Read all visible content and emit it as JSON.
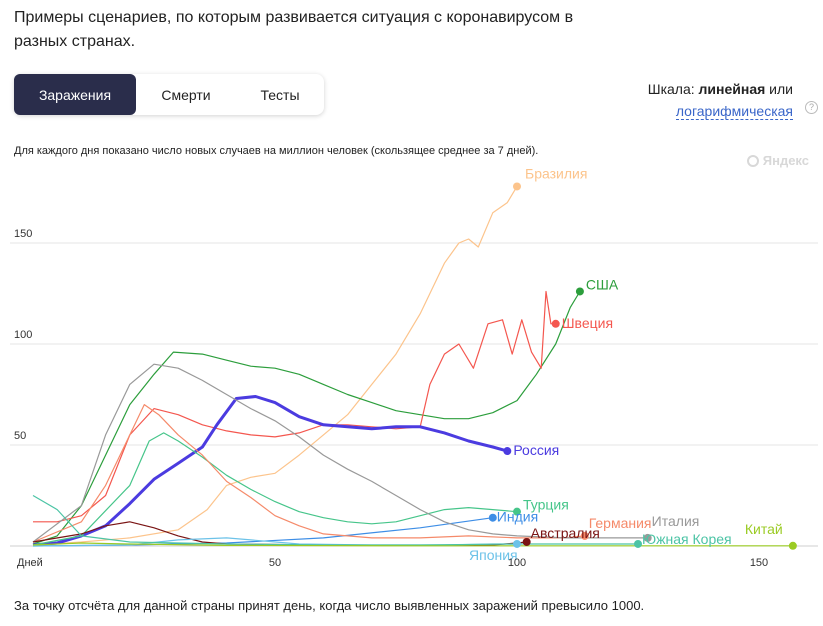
{
  "title": "Примеры сценариев, по которым развивается ситуация с коронавирусом в разных странах.",
  "tabs": [
    {
      "label": "Заражения",
      "active": true
    },
    {
      "label": "Смерти",
      "active": false
    },
    {
      "label": "Тесты",
      "active": false
    }
  ],
  "scale": {
    "prefix": "Шкала: ",
    "current": "линейная",
    "or": " или",
    "alt": "логарифмическая",
    "help": "?"
  },
  "subtitle": "Для каждого дня показано число новых случаев на миллион человек (скользящее среднее за 7 дней).",
  "logo": "Яндекс",
  "footnote": "За точку отсчёта для данной страны принят день, когда число выявленных заражений превысило 1000.",
  "chart_data": {
    "type": "line",
    "xlabel": "Дней",
    "ylabel": "",
    "xlim": [
      0,
      163
    ],
    "ylim": [
      0,
      185
    ],
    "xticks": [
      50,
      100,
      150
    ],
    "yticks": [
      50,
      100,
      150
    ],
    "grid": "horizontal",
    "series": [
      {
        "name": "Бразилия",
        "color": "#fcc48c",
        "points": [
          [
            0,
            0.5
          ],
          [
            10,
            2
          ],
          [
            20,
            4
          ],
          [
            30,
            8
          ],
          [
            36,
            18
          ],
          [
            40,
            30
          ],
          [
            45,
            34
          ],
          [
            50,
            36
          ],
          [
            55,
            45
          ],
          [
            60,
            55
          ],
          [
            65,
            65
          ],
          [
            70,
            80
          ],
          [
            75,
            95
          ],
          [
            80,
            115
          ],
          [
            85,
            140
          ],
          [
            88,
            150
          ],
          [
            90,
            152
          ],
          [
            92,
            148
          ],
          [
            95,
            165
          ],
          [
            98,
            170
          ],
          [
            100,
            178
          ]
        ]
      },
      {
        "name": "США",
        "color": "#2c9e3c",
        "points": [
          [
            0,
            1
          ],
          [
            5,
            5
          ],
          [
            10,
            20
          ],
          [
            15,
            45
          ],
          [
            20,
            70
          ],
          [
            25,
            85
          ],
          [
            29,
            96
          ],
          [
            35,
            95
          ],
          [
            40,
            92
          ],
          [
            45,
            89
          ],
          [
            50,
            88
          ],
          [
            55,
            85
          ],
          [
            60,
            80
          ],
          [
            65,
            75
          ],
          [
            70,
            71
          ],
          [
            75,
            67
          ],
          [
            80,
            65
          ],
          [
            85,
            63
          ],
          [
            90,
            63
          ],
          [
            95,
            66
          ],
          [
            100,
            72
          ],
          [
            104,
            85
          ],
          [
            108,
            100
          ],
          [
            111,
            118
          ],
          [
            113,
            126
          ]
        ]
      },
      {
        "name": "Швеция",
        "color": "#f4574f",
        "points": [
          [
            0,
            12
          ],
          [
            5,
            12
          ],
          [
            10,
            15
          ],
          [
            15,
            25
          ],
          [
            20,
            55
          ],
          [
            25,
            68
          ],
          [
            30,
            65
          ],
          [
            35,
            60
          ],
          [
            40,
            57
          ],
          [
            45,
            55
          ],
          [
            50,
            54
          ],
          [
            55,
            56
          ],
          [
            60,
            60
          ],
          [
            65,
            60
          ],
          [
            70,
            59
          ],
          [
            75,
            58
          ],
          [
            80,
            59
          ],
          [
            82,
            80
          ],
          [
            85,
            95
          ],
          [
            88,
            100
          ],
          [
            91,
            88
          ],
          [
            94,
            110
          ],
          [
            97,
            112
          ],
          [
            99,
            95
          ],
          [
            101,
            112
          ],
          [
            103,
            96
          ],
          [
            105,
            88
          ],
          [
            106,
            126
          ],
          [
            107,
            110
          ],
          [
            108,
            110
          ]
        ]
      },
      {
        "name": "Россия",
        "color": "#4b3be0",
        "bold": true,
        "points": [
          [
            0,
            0.5
          ],
          [
            5,
            1.5
          ],
          [
            10,
            5
          ],
          [
            15,
            10
          ],
          [
            20,
            21
          ],
          [
            25,
            33
          ],
          [
            30,
            41
          ],
          [
            35,
            49
          ],
          [
            38,
            60
          ],
          [
            42,
            73
          ],
          [
            46,
            74
          ],
          [
            50,
            71
          ],
          [
            55,
            64
          ],
          [
            60,
            60
          ],
          [
            65,
            59
          ],
          [
            70,
            58
          ],
          [
            75,
            59
          ],
          [
            80,
            59
          ],
          [
            85,
            56
          ],
          [
            90,
            52
          ],
          [
            95,
            49
          ],
          [
            98,
            47
          ]
        ]
      },
      {
        "name": "Турция",
        "color": "#46c58a",
        "points": [
          [
            0,
            0.5
          ],
          [
            10,
            5
          ],
          [
            20,
            30
          ],
          [
            24,
            52
          ],
          [
            27,
            56
          ],
          [
            30,
            52
          ],
          [
            35,
            44
          ],
          [
            40,
            35
          ],
          [
            45,
            28
          ],
          [
            50,
            22
          ],
          [
            55,
            17
          ],
          [
            60,
            14
          ],
          [
            65,
            12
          ],
          [
            70,
            11
          ],
          [
            75,
            12
          ],
          [
            80,
            15
          ],
          [
            85,
            18
          ],
          [
            90,
            19
          ],
          [
            95,
            18
          ],
          [
            100,
            17
          ]
        ]
      },
      {
        "name": "Индия",
        "color": "#3e8ee6",
        "points": [
          [
            0,
            0
          ],
          [
            20,
            0.5
          ],
          [
            40,
            1.5
          ],
          [
            60,
            4
          ],
          [
            80,
            9
          ],
          [
            95,
            14
          ]
        ]
      },
      {
        "name": "Германия",
        "color": "#f58a6a",
        "points": [
          [
            0,
            2
          ],
          [
            10,
            12
          ],
          [
            15,
            30
          ],
          [
            20,
            55
          ],
          [
            23,
            70
          ],
          [
            26,
            65
          ],
          [
            30,
            55
          ],
          [
            35,
            45
          ],
          [
            40,
            32
          ],
          [
            45,
            24
          ],
          [
            50,
            15
          ],
          [
            55,
            10
          ],
          [
            60,
            6
          ],
          [
            70,
            4
          ],
          [
            80,
            4
          ],
          [
            90,
            5
          ],
          [
            100,
            4
          ],
          [
            110,
            4
          ],
          [
            114,
            5
          ]
        ]
      },
      {
        "name": "Италия",
        "color": "#999999",
        "points": [
          [
            0,
            2
          ],
          [
            10,
            20
          ],
          [
            15,
            55
          ],
          [
            20,
            80
          ],
          [
            25,
            90
          ],
          [
            30,
            88
          ],
          [
            35,
            82
          ],
          [
            40,
            75
          ],
          [
            45,
            68
          ],
          [
            50,
            62
          ],
          [
            55,
            54
          ],
          [
            60,
            45
          ],
          [
            65,
            38
          ],
          [
            70,
            32
          ],
          [
            75,
            25
          ],
          [
            80,
            18
          ],
          [
            85,
            12
          ],
          [
            90,
            8
          ],
          [
            95,
            6
          ],
          [
            100,
            5
          ],
          [
            110,
            4
          ],
          [
            120,
            4
          ],
          [
            127,
            4
          ]
        ]
      },
      {
        "name": "Австралия",
        "color": "#7a1414",
        "points": [
          [
            0,
            2
          ],
          [
            10,
            6
          ],
          [
            15,
            10
          ],
          [
            20,
            12
          ],
          [
            25,
            9
          ],
          [
            30,
            5
          ],
          [
            35,
            2
          ],
          [
            40,
            1
          ],
          [
            60,
            0.5
          ],
          [
            80,
            0.3
          ],
          [
            95,
            0.5
          ],
          [
            100,
            1.5
          ],
          [
            102,
            2
          ]
        ]
      },
      {
        "name": "Япония",
        "color": "#6cc2e8",
        "points": [
          [
            0,
            0
          ],
          [
            20,
            0.5
          ],
          [
            30,
            3
          ],
          [
            40,
            4
          ],
          [
            45,
            3
          ],
          [
            55,
            1
          ],
          [
            70,
            0.5
          ],
          [
            85,
            0.5
          ],
          [
            95,
            1
          ],
          [
            100,
            1
          ]
        ]
      },
      {
        "name": "Южная Корея",
        "color": "#4cc4a5",
        "points": [
          [
            0,
            25
          ],
          [
            5,
            18
          ],
          [
            10,
            5
          ],
          [
            20,
            2
          ],
          [
            40,
            1
          ],
          [
            60,
            0.5
          ],
          [
            80,
            0.5
          ],
          [
            100,
            1
          ],
          [
            120,
            1
          ],
          [
            125,
            1
          ]
        ]
      },
      {
        "name": "Китай",
        "color": "#9bcb24",
        "points": [
          [
            0,
            0.5
          ],
          [
            10,
            1.5
          ],
          [
            20,
            1
          ],
          [
            40,
            0.3
          ],
          [
            80,
            0.1
          ],
          [
            120,
            0.1
          ],
          [
            157,
            0.1
          ]
        ]
      }
    ]
  }
}
